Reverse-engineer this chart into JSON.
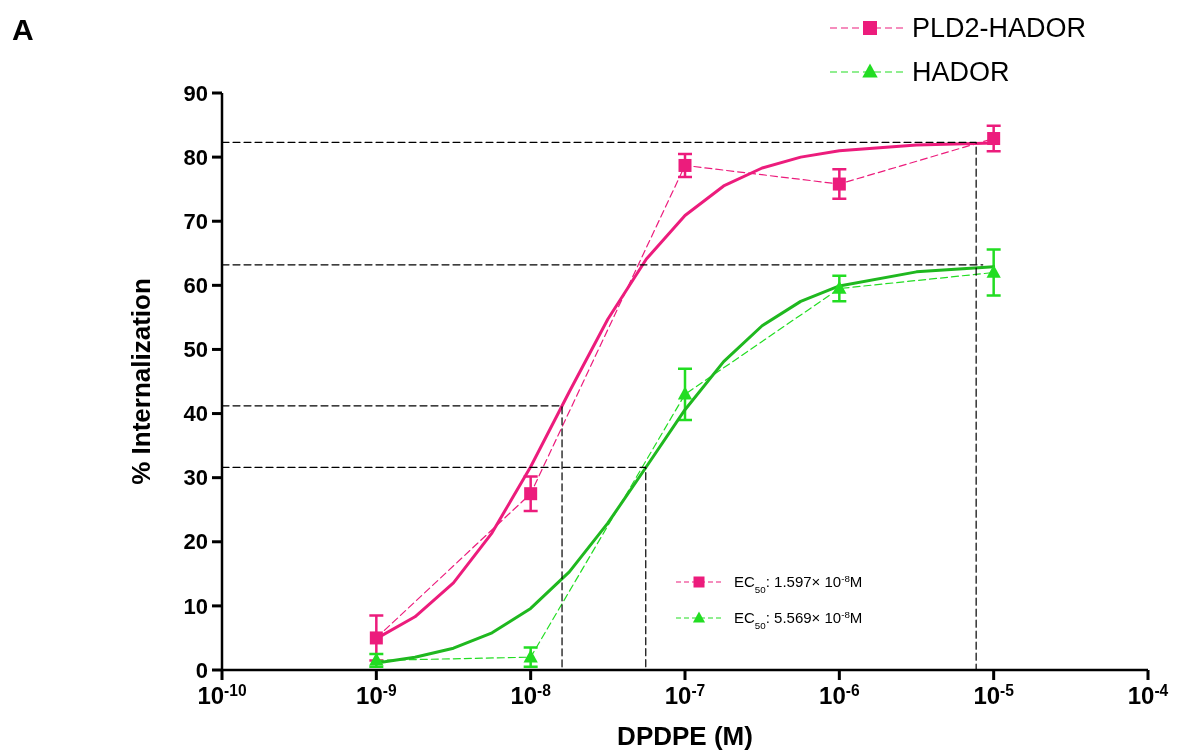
{
  "chart_data": {
    "type": "line",
    "xlabel": "DPDPE (M)",
    "ylabel": "% Internalization",
    "log": "x",
    "xlim": [
      1e-10,
      0.0001
    ],
    "xticks": [
      {
        "value": 1e-10,
        "label": "10$^{-10}$"
      },
      {
        "value": 1e-09,
        "label": "10$^{-9}$"
      },
      {
        "value": 1e-08,
        "label": "10$^{-8}$"
      },
      {
        "value": 1e-07,
        "label": "10$^{-7}$"
      },
      {
        "value": 1e-06,
        "label": "10$^{-6}$"
      },
      {
        "value": 1e-05,
        "label": "10$^{-5}$"
      },
      {
        "value": 0.0001,
        "label": "10$^{-4}$"
      }
    ],
    "ylim": [
      0,
      90
    ],
    "yticks": [
      0,
      10,
      20,
      30,
      40,
      50,
      60,
      70,
      80,
      90
    ],
    "legend": "top right",
    "grid": false,
    "series": [
      {
        "name": "PLD2-HADOR",
        "color": "#ec1c7c",
        "marker": "square",
        "line_style": "dashed",
        "x": [
          1e-09,
          1e-08,
          1e-07,
          1e-06,
          1e-05
        ],
        "values": [
          5,
          27.5,
          78.7,
          75.8,
          82.9
        ],
        "errors": [
          3.5,
          2.7,
          1.8,
          2.3,
          2
        ]
      },
      {
        "name": "HADOR",
        "color": "#22dd22",
        "marker": "triangle",
        "line_style": "dashed",
        "x": [
          1e-09,
          1e-08,
          1e-07,
          1e-06,
          1e-05
        ],
        "values": [
          1.5,
          2,
          43,
          59.5,
          62
        ],
        "errors": [
          1,
          1.5,
          4,
          2,
          3.6
        ]
      },
      {
        "color": "#ec1c7c",
        "marker": "none",
        "line_style": "solid",
        "x": [
          1e-09,
          1.78e-09,
          3.16e-09,
          5.62e-09,
          1e-08,
          1.78e-08,
          3.16e-08,
          5.62e-08,
          1e-07,
          1.78e-07,
          3.16e-07,
          5.62e-07,
          1e-06,
          3.16e-06,
          1e-05
        ],
        "values": [
          4.9,
          8.3,
          13.6,
          21.4,
          31.7,
          43.4,
          54.7,
          64.1,
          70.9,
          75.5,
          78.3,
          80,
          81,
          81.9,
          82.2
        ]
      },
      {
        "color": "#1fb81f",
        "marker": "none",
        "line_style": "solid",
        "x": [
          1e-09,
          1.78e-09,
          3.16e-09,
          5.62e-09,
          1e-08,
          1.78e-08,
          3.16e-08,
          5.62e-08,
          1e-07,
          1.78e-07,
          3.16e-07,
          5.62e-07,
          1e-06,
          3.16e-06,
          1e-05
        ],
        "values": [
          1.1,
          2,
          3.4,
          5.8,
          9.6,
          15.3,
          22.9,
          31.7,
          40.6,
          48.1,
          53.7,
          57.5,
          59.9,
          62.1,
          62.9
        ]
      },
      {
        "color": "#000000",
        "marker": "none",
        "line_style": "dashed",
        "x": [
          1e-10,
          7.7e-06,
          7.7e-06
        ],
        "values": [
          82.3,
          82.3,
          0
        ]
      },
      {
        "color": "#000000",
        "marker": "none",
        "line_style": "dashed",
        "x": [
          1e-10,
          8.5e-06
        ],
        "values": [
          63.2,
          63.2
        ]
      },
      {
        "color": "#000000",
        "marker": "none",
        "line_style": "dashed",
        "x": [
          1e-10,
          1.597e-08,
          1.597e-08
        ],
        "values": [
          41.2,
          41.2,
          0
        ]
      },
      {
        "color": "#000000",
        "marker": "none",
        "line_style": "dashed",
        "x": [
          1e-10,
          5.569e-08,
          5.569e-08
        ],
        "values": [
          31.6,
          31.6,
          0
        ]
      }
    ],
    "annotations": [
      "A",
      "EC$_{50}$: 1.597× 10$^{-8}$M",
      "EC$_{50}$: 5.569× 10$^{-8}$M"
    ]
  }
}
